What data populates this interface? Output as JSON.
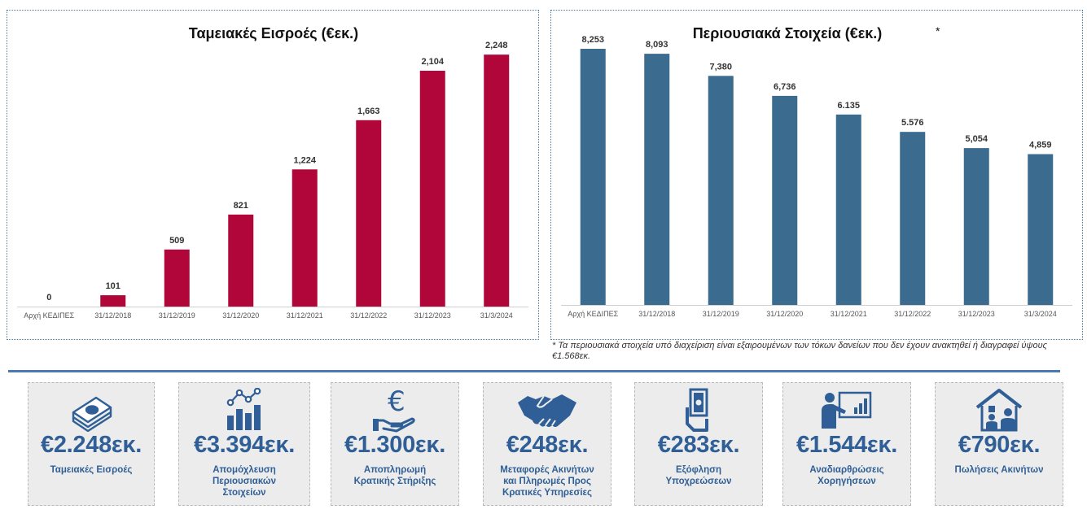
{
  "charts": {
    "cash": {
      "title": "Ταμειακές Εισροές (€εκ.)",
      "color": "#b10639"
    },
    "assets": {
      "title": "Περιουσιακά Στοιχεία (€εκ.)",
      "title_marker": "*",
      "color": "#3b6b8e"
    }
  },
  "chart_data": [
    {
      "type": "bar",
      "title": "Ταμειακές Εισροές (€εκ.)",
      "categories": [
        "Αρχή ΚΕΔΙΠΕΣ",
        "31/12/2018",
        "31/12/2019",
        "31/12/2020",
        "31/12/2021",
        "31/12/2022",
        "31/12/2023",
        "31/3/2024"
      ],
      "values": [
        0,
        101,
        509,
        821,
        1224,
        1663,
        2104,
        2248
      ],
      "value_labels": [
        "0",
        "101",
        "509",
        "821",
        "1,224",
        "1,663",
        "2,104",
        "2,248"
      ],
      "ylim": [
        0,
        2300
      ],
      "grid": false,
      "color": "#b10639"
    },
    {
      "type": "bar",
      "title": "Περιουσιακά Στοιχεία (€εκ.)",
      "categories": [
        "Αρχή ΚΕΔΙΠΕΣ",
        "31/12/2018",
        "31/12/2019",
        "31/12/2020",
        "31/12/2021",
        "31/12/2022",
        "31/12/2023",
        "31/3/2024"
      ],
      "values": [
        8253,
        8093,
        7380,
        6736,
        6135,
        5576,
        5054,
        4859
      ],
      "value_labels": [
        "8,253",
        "8,093",
        "7,380",
        "6,736",
        "6.135",
        "5.576",
        "5,054",
        "4,859"
      ],
      "ylim": [
        0,
        8253
      ],
      "grid": false,
      "color": "#3b6b8e"
    }
  ],
  "footnote": "* Τα περιουσιακά στοιχεία υπό διαχείριση είναι εξαιρουμένων των τόκων δανείων που δεν έχουν ανακτηθεί ή διαγραφεί  ύψους €1.568εκ.",
  "stats": [
    {
      "icon": "money-stack-icon",
      "value": "€2.248εκ.",
      "label": "Ταμειακές Εισροές"
    },
    {
      "icon": "bar-chart-growth-icon",
      "value": "€3.394εκ.",
      "label": "Απομόχλευση\nΠεριουσιακών\nΣτοιχείων"
    },
    {
      "icon": "euro-hand-icon",
      "value": "€1.300εκ.",
      "label": "Αποπληρωμή\nΚρατικής Στήριξης"
    },
    {
      "icon": "handshake-icon",
      "value": "€248εκ.",
      "label": "Μεταφορές Ακινήτων\nκαι Πληρωμές Προς\nΚρατικές Υπηρεσίες"
    },
    {
      "icon": "hand-bill-icon",
      "value": "€283εκ.",
      "label": "Εξόφληση\nΥποχρεώσεων"
    },
    {
      "icon": "presentation-icon",
      "value": "€1.544εκ.",
      "label": "Αναδιαρθρώσεις\nΧορηγήσεων"
    },
    {
      "icon": "house-family-icon",
      "value": "€790εκ.",
      "label": "Πωλήσεις Ακινήτων"
    }
  ]
}
